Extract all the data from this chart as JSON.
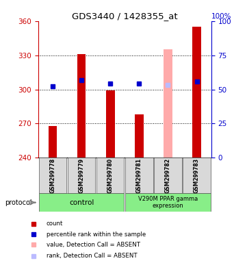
{
  "title": "GDS3440 / 1428355_at",
  "samples": [
    "GSM299778",
    "GSM299779",
    "GSM299780",
    "GSM299781",
    "GSM299782",
    "GSM299783"
  ],
  "ylim_left": [
    240,
    360
  ],
  "ylim_right": [
    0,
    100
  ],
  "yticks_left": [
    240,
    270,
    300,
    330,
    360
  ],
  "yticks_right": [
    0,
    25,
    50,
    75,
    100
  ],
  "bar_bottoms": [
    240,
    240,
    240,
    240,
    240,
    240
  ],
  "bar_heights_red": [
    268,
    331,
    299,
    278,
    335,
    355
  ],
  "bar_color_red": "#cc0000",
  "bar_color_pink": "#ffaaaa",
  "bar_color_lightblue": "#bbbbff",
  "blue_square_y": [
    303,
    308,
    305,
    305,
    304,
    307
  ],
  "blue_square_color": "#0000cc",
  "absent_bar_index": 4,
  "grid_yticks": [
    270,
    300,
    330
  ],
  "left_axis_color": "#cc0000",
  "right_axis_color": "#0000cc",
  "right_axis_label": "100%",
  "xlim": [
    -0.5,
    5.5
  ],
  "bar_width": 0.3,
  "legend_colors": [
    "#cc0000",
    "#0000cc",
    "#ffaaaa",
    "#bbbbff"
  ],
  "legend_labels": [
    "count",
    "percentile rank within the sample",
    "value, Detection Call = ABSENT",
    "rank, Detection Call = ABSENT"
  ]
}
